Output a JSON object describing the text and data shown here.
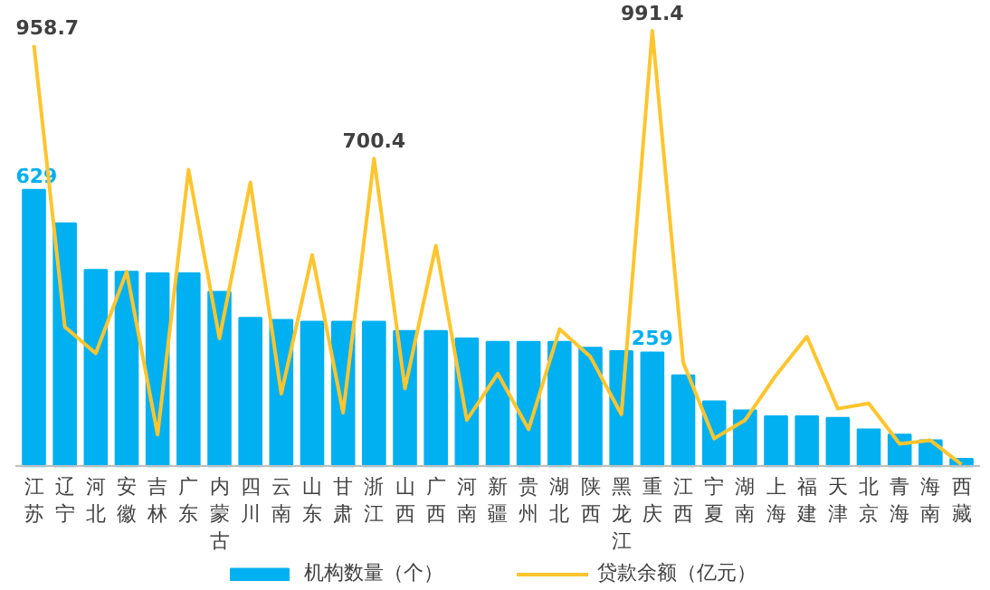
{
  "chart_data": {
    "type": "bar",
    "categories": [
      "江苏",
      "辽宁",
      "河北",
      "安徽",
      "吉林",
      "广东",
      "内蒙古",
      "四川",
      "云南",
      "山东",
      "甘肃",
      "浙江",
      "山西",
      "广西",
      "河南",
      "新疆",
      "贵州",
      "湖北",
      "陕西",
      "黑龙江",
      "重庆",
      "江西",
      "宁夏",
      "湖南",
      "上海",
      "福建",
      "天津",
      "北京",
      "青海",
      "海南",
      "西藏"
    ],
    "series": [
      {
        "name": "机构数量（个）",
        "color": "#00b0f0",
        "values": [
          629,
          553,
          447,
          443,
          439,
          439,
          397,
          338,
          333,
          329,
          329,
          329,
          308,
          308,
          291,
          283,
          283,
          283,
          270,
          262,
          259,
          207,
          148,
          127,
          114,
          114,
          110,
          84,
          72,
          59,
          17
        ],
        "value_labels": [
          "629",
          null,
          null,
          null,
          null,
          null,
          null,
          null,
          null,
          null,
          null,
          null,
          null,
          null,
          null,
          null,
          null,
          null,
          null,
          null,
          "259",
          null,
          null,
          null,
          null,
          null,
          null,
          null,
          null,
          null,
          null
        ]
      },
      {
        "name": "贷款余额（亿元）",
        "type": "line",
        "color": "#ffc52f",
        "values": [
          958.7,
          317,
          257,
          443,
          72,
          675,
          291,
          646,
          165,
          481,
          122,
          700.4,
          177,
          502,
          105,
          211,
          84,
          312,
          249,
          118,
          991.4,
          236,
          63,
          105,
          207,
          295,
          131,
          143,
          51,
          59,
          4
        ],
        "value_labels": [
          "958.7",
          null,
          null,
          null,
          null,
          null,
          null,
          null,
          null,
          null,
          null,
          "700.4",
          null,
          null,
          null,
          null,
          null,
          null,
          null,
          null,
          "991.4",
          null,
          null,
          null,
          null,
          null,
          null,
          null,
          null,
          null,
          null
        ]
      }
    ],
    "tick_labels": "x",
    "legend": "bottom"
  }
}
